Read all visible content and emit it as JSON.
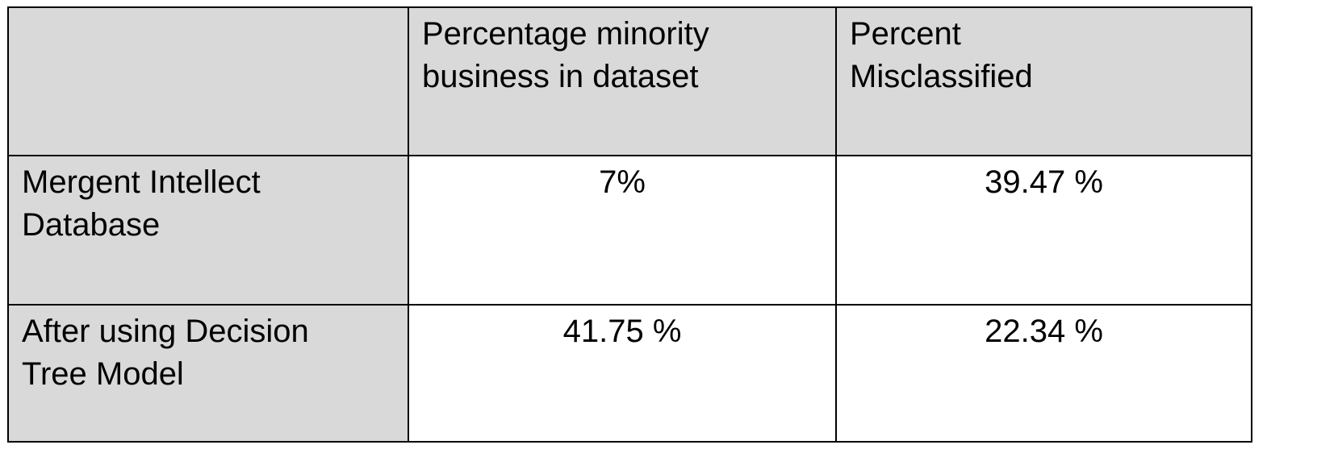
{
  "table": {
    "colors": {
      "header_fill": "#d9d9d9",
      "label_fill": "#d9d9d9",
      "value_fill": "#ffffff",
      "border": "#000000"
    },
    "header": {
      "corner": "",
      "col1_line1": "Percentage minority",
      "col1_line2": "business in dataset",
      "col2_line1": "Percent",
      "col2_line2": "Misclassified"
    },
    "rows": [
      {
        "label_line1": "Mergent Intellect",
        "label_line2": "Database",
        "minority_pct": "7%",
        "misclassified_pct": "39.47 %"
      },
      {
        "label_line1": "After using Decision",
        "label_line2": "Tree Model",
        "minority_pct": "41.75 %",
        "misclassified_pct": "22.34 %"
      }
    ]
  }
}
